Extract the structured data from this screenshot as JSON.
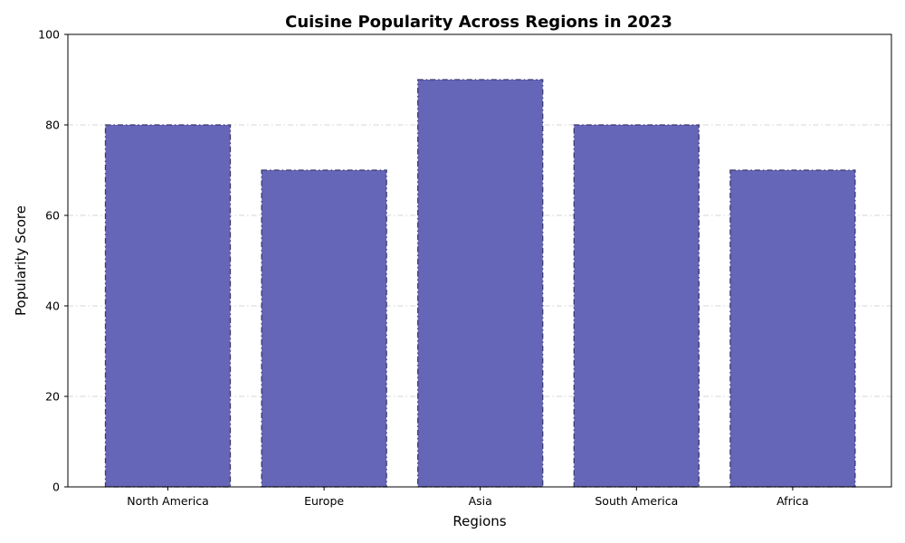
{
  "chart_data": {
    "type": "bar",
    "title": "Cuisine Popularity Across Regions in 2023",
    "xlabel": "Regions",
    "ylabel": "Popularity Score",
    "categories": [
      "North America",
      "Europe",
      "Asia",
      "South America",
      "Africa"
    ],
    "values": [
      80,
      70,
      90,
      80,
      70
    ],
    "ylim": [
      0,
      100
    ],
    "yticks": [
      0,
      20,
      40,
      60,
      80,
      100
    ],
    "grid": true,
    "bar_color": "#6666b8",
    "bar_edge_color": "#3a3a6e"
  }
}
